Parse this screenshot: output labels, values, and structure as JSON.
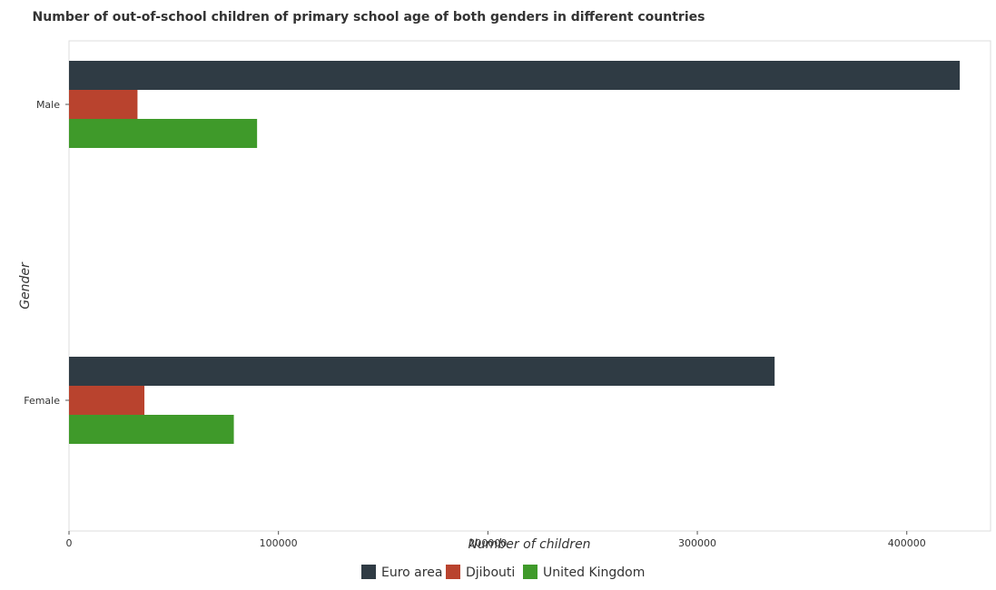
{
  "chart_data": {
    "type": "bar",
    "orientation": "horizontal",
    "title": "Number of out-of-school children of primary school age of both genders in different countries",
    "xlabel": "Number of children",
    "ylabel": "Gender",
    "categories": [
      "Female",
      "Male"
    ],
    "series": [
      {
        "name": "Euro area",
        "color": "#2f3b44",
        "values": [
          336900,
          425300
        ]
      },
      {
        "name": "Djibouti",
        "color": "#b9432e",
        "values": [
          36000,
          32700
        ]
      },
      {
        "name": "United Kingdom",
        "color": "#3f9a2a",
        "values": [
          78700,
          89800
        ]
      }
    ],
    "xlim": [
      0,
      440000
    ],
    "xticks": [
      0,
      100000,
      200000,
      300000,
      400000
    ],
    "xtick_labels": [
      "0",
      "100000",
      "200000",
      "300000",
      "400000"
    ],
    "grid": false,
    "legend_position": "bottom-center"
  }
}
